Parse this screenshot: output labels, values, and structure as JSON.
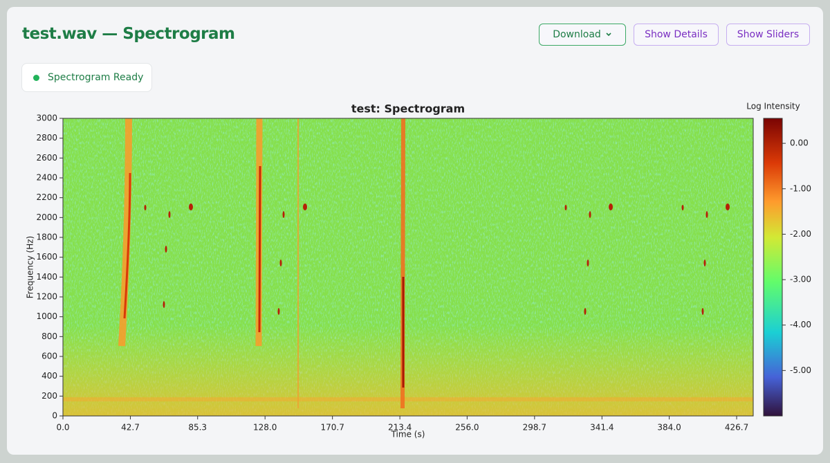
{
  "header": {
    "title": "test.wav — Spectrogram",
    "buttons": [
      "Download",
      "Show Details",
      "Show Sliders"
    ]
  },
  "status": "Spectrogram Ready",
  "chart_data": {
    "type": "heatmap",
    "title": "test: Spectrogram",
    "x_label": "Time (s)",
    "y_label": "Frequency (Hz)",
    "xlim": [
      0,
      437.2
    ],
    "xticks": [
      {
        "value": 0,
        "label": "0.0"
      },
      42.7,
      85.3,
      {
        "value": 128,
        "label": "128.0"
      },
      170.7,
      213.4,
      {
        "value": 256,
        "label": "256.0"
      },
      298.7,
      341.4,
      {
        "value": 384,
        "label": "384.0"
      },
      426.7
    ],
    "ylim": [
      0,
      3000
    ],
    "yticks": [
      0,
      200,
      400,
      600,
      800,
      1000,
      1200,
      1400,
      1600,
      1800,
      2000,
      2200,
      2400,
      2600,
      2800,
      3000
    ],
    "colorbar": {
      "label": "Log Intensity",
      "lim": [
        -6,
        0.55
      ],
      "ticks": [
        {
          "value": 0,
          "label": "0.00"
        },
        {
          "value": -1,
          "label": "-1.00"
        },
        {
          "value": -2,
          "label": "-2.00"
        },
        {
          "value": -3,
          "label": "-3.00"
        },
        {
          "value": -4,
          "label": "-4.00"
        },
        {
          "value": -5,
          "label": "-5.00"
        }
      ]
    }
  }
}
